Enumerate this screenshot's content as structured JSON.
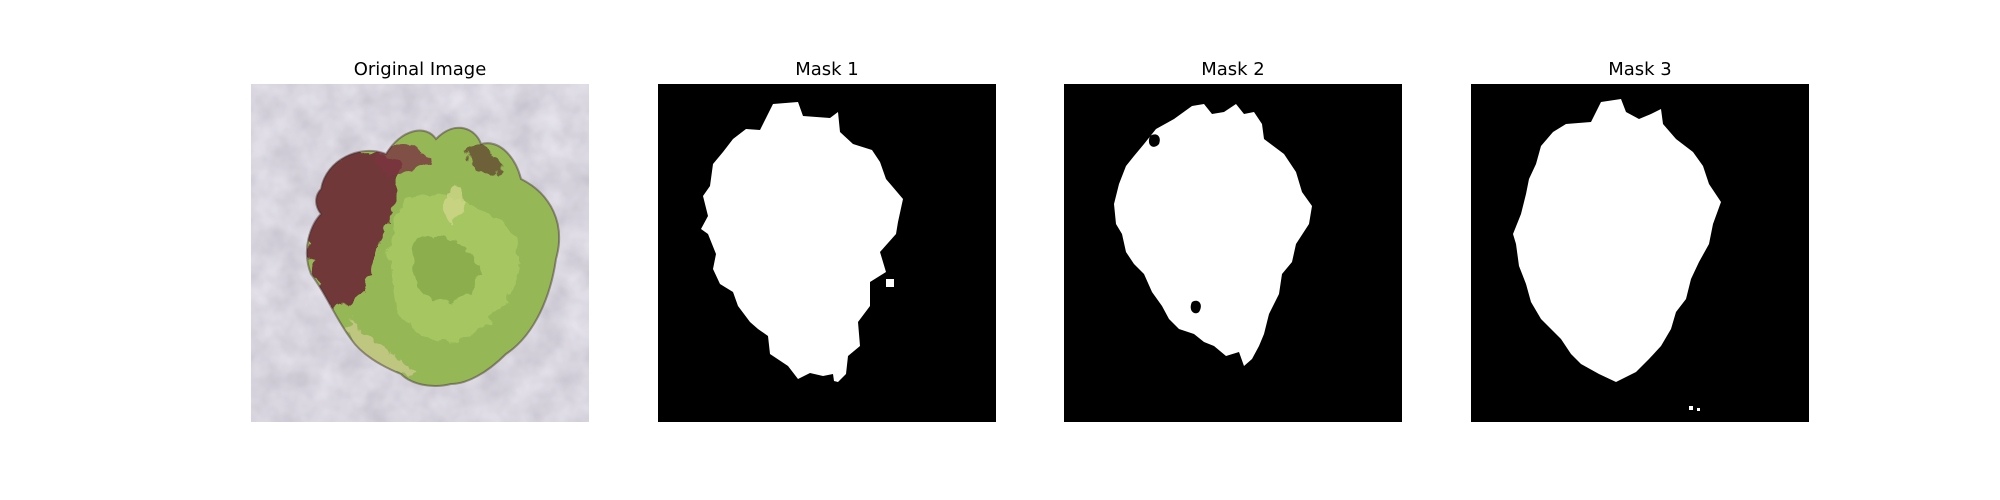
{
  "figure": {
    "panels": [
      {
        "title": "Original Image"
      },
      {
        "title": "Mask 1"
      },
      {
        "title": "Mask 2"
      },
      {
        "title": "Mask 3"
      }
    ]
  },
  "colors": {
    "background": "#ffffff",
    "mask_background": "#000000",
    "mask_foreground": "#ffffff",
    "surface_gray": "#b9b5c2",
    "lettuce_green": "#95b756",
    "lettuce_red": "#6b2a34"
  }
}
